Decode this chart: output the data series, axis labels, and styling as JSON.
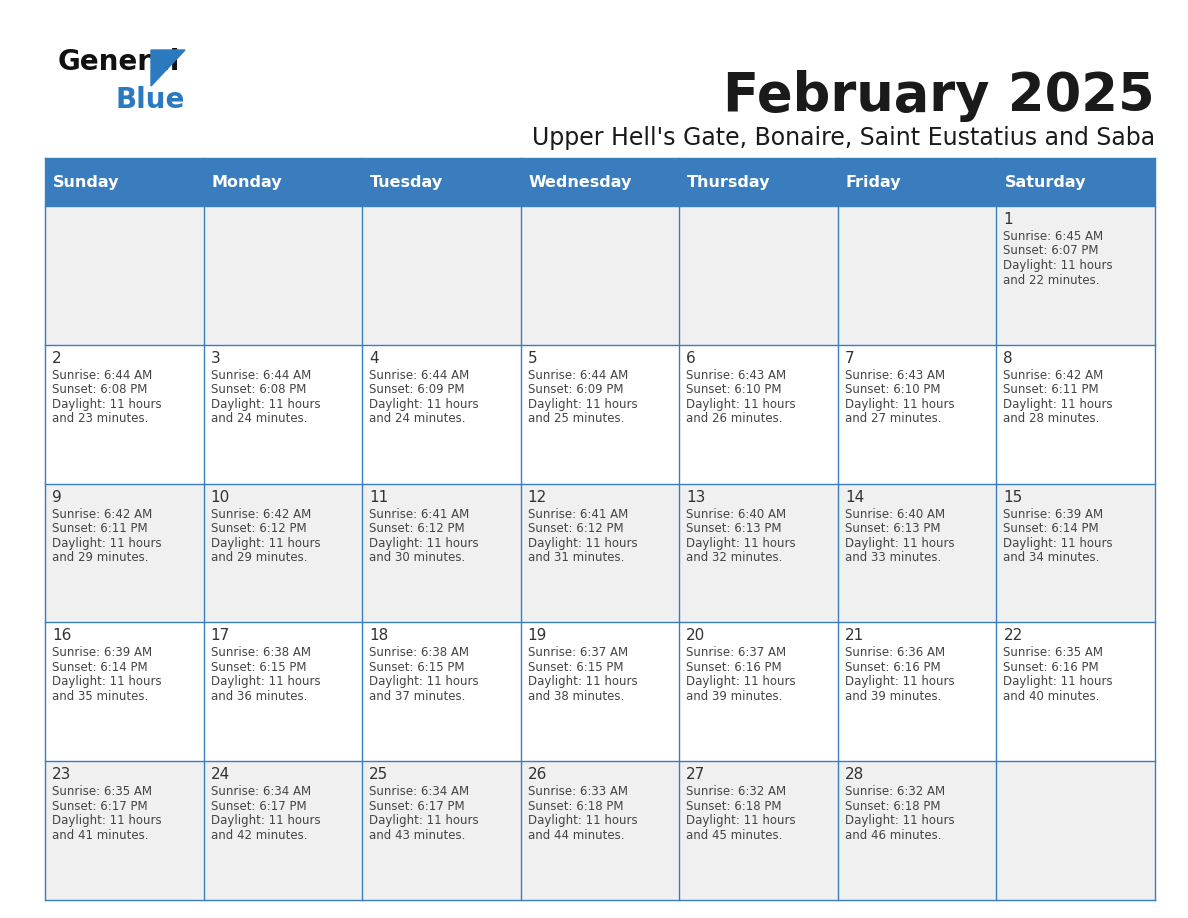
{
  "title": "February 2025",
  "subtitle": "Upper Hell's Gate, Bonaire, Saint Eustatius and Saba",
  "days_of_week": [
    "Sunday",
    "Monday",
    "Tuesday",
    "Wednesday",
    "Thursday",
    "Friday",
    "Saturday"
  ],
  "header_bg": "#3a7dbf",
  "header_text": "#ffffff",
  "row_bg_odd": "#f0f0f0",
  "row_bg_even": "#ffffff",
  "border_color": "#3a7dbf",
  "text_color": "#333333",
  "day_number_color": "#333333",
  "info_text_color": "#444444",
  "calendar_data": [
    {
      "day": 1,
      "col": 6,
      "row": 0,
      "sunrise": "6:45 AM",
      "sunset": "6:07 PM",
      "daylight": "11 hours and 22 minutes."
    },
    {
      "day": 2,
      "col": 0,
      "row": 1,
      "sunrise": "6:44 AM",
      "sunset": "6:08 PM",
      "daylight": "11 hours and 23 minutes."
    },
    {
      "day": 3,
      "col": 1,
      "row": 1,
      "sunrise": "6:44 AM",
      "sunset": "6:08 PM",
      "daylight": "11 hours and 24 minutes."
    },
    {
      "day": 4,
      "col": 2,
      "row": 1,
      "sunrise": "6:44 AM",
      "sunset": "6:09 PM",
      "daylight": "11 hours and 24 minutes."
    },
    {
      "day": 5,
      "col": 3,
      "row": 1,
      "sunrise": "6:44 AM",
      "sunset": "6:09 PM",
      "daylight": "11 hours and 25 minutes."
    },
    {
      "day": 6,
      "col": 4,
      "row": 1,
      "sunrise": "6:43 AM",
      "sunset": "6:10 PM",
      "daylight": "11 hours and 26 minutes."
    },
    {
      "day": 7,
      "col": 5,
      "row": 1,
      "sunrise": "6:43 AM",
      "sunset": "6:10 PM",
      "daylight": "11 hours and 27 minutes."
    },
    {
      "day": 8,
      "col": 6,
      "row": 1,
      "sunrise": "6:42 AM",
      "sunset": "6:11 PM",
      "daylight": "11 hours and 28 minutes."
    },
    {
      "day": 9,
      "col": 0,
      "row": 2,
      "sunrise": "6:42 AM",
      "sunset": "6:11 PM",
      "daylight": "11 hours and 29 minutes."
    },
    {
      "day": 10,
      "col": 1,
      "row": 2,
      "sunrise": "6:42 AM",
      "sunset": "6:12 PM",
      "daylight": "11 hours and 29 minutes."
    },
    {
      "day": 11,
      "col": 2,
      "row": 2,
      "sunrise": "6:41 AM",
      "sunset": "6:12 PM",
      "daylight": "11 hours and 30 minutes."
    },
    {
      "day": 12,
      "col": 3,
      "row": 2,
      "sunrise": "6:41 AM",
      "sunset": "6:12 PM",
      "daylight": "11 hours and 31 minutes."
    },
    {
      "day": 13,
      "col": 4,
      "row": 2,
      "sunrise": "6:40 AM",
      "sunset": "6:13 PM",
      "daylight": "11 hours and 32 minutes."
    },
    {
      "day": 14,
      "col": 5,
      "row": 2,
      "sunrise": "6:40 AM",
      "sunset": "6:13 PM",
      "daylight": "11 hours and 33 minutes."
    },
    {
      "day": 15,
      "col": 6,
      "row": 2,
      "sunrise": "6:39 AM",
      "sunset": "6:14 PM",
      "daylight": "11 hours and 34 minutes."
    },
    {
      "day": 16,
      "col": 0,
      "row": 3,
      "sunrise": "6:39 AM",
      "sunset": "6:14 PM",
      "daylight": "11 hours and 35 minutes."
    },
    {
      "day": 17,
      "col": 1,
      "row": 3,
      "sunrise": "6:38 AM",
      "sunset": "6:15 PM",
      "daylight": "11 hours and 36 minutes."
    },
    {
      "day": 18,
      "col": 2,
      "row": 3,
      "sunrise": "6:38 AM",
      "sunset": "6:15 PM",
      "daylight": "11 hours and 37 minutes."
    },
    {
      "day": 19,
      "col": 3,
      "row": 3,
      "sunrise": "6:37 AM",
      "sunset": "6:15 PM",
      "daylight": "11 hours and 38 minutes."
    },
    {
      "day": 20,
      "col": 4,
      "row": 3,
      "sunrise": "6:37 AM",
      "sunset": "6:16 PM",
      "daylight": "11 hours and 39 minutes."
    },
    {
      "day": 21,
      "col": 5,
      "row": 3,
      "sunrise": "6:36 AM",
      "sunset": "6:16 PM",
      "daylight": "11 hours and 39 minutes."
    },
    {
      "day": 22,
      "col": 6,
      "row": 3,
      "sunrise": "6:35 AM",
      "sunset": "6:16 PM",
      "daylight": "11 hours and 40 minutes."
    },
    {
      "day": 23,
      "col": 0,
      "row": 4,
      "sunrise": "6:35 AM",
      "sunset": "6:17 PM",
      "daylight": "11 hours and 41 minutes."
    },
    {
      "day": 24,
      "col": 1,
      "row": 4,
      "sunrise": "6:34 AM",
      "sunset": "6:17 PM",
      "daylight": "11 hours and 42 minutes."
    },
    {
      "day": 25,
      "col": 2,
      "row": 4,
      "sunrise": "6:34 AM",
      "sunset": "6:17 PM",
      "daylight": "11 hours and 43 minutes."
    },
    {
      "day": 26,
      "col": 3,
      "row": 4,
      "sunrise": "6:33 AM",
      "sunset": "6:18 PM",
      "daylight": "11 hours and 44 minutes."
    },
    {
      "day": 27,
      "col": 4,
      "row": 4,
      "sunrise": "6:32 AM",
      "sunset": "6:18 PM",
      "daylight": "11 hours and 45 minutes."
    },
    {
      "day": 28,
      "col": 5,
      "row": 4,
      "sunrise": "6:32 AM",
      "sunset": "6:18 PM",
      "daylight": "11 hours and 46 minutes."
    }
  ]
}
